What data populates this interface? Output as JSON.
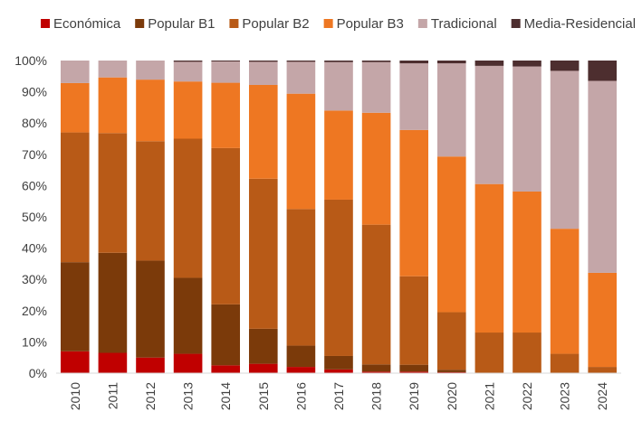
{
  "chart_data": {
    "type": "bar",
    "stacked": "percent",
    "categories": [
      "2010",
      "2011",
      "2012",
      "2013",
      "2014",
      "2015",
      "2016",
      "2017",
      "2018",
      "2019",
      "2020",
      "2021",
      "2022",
      "2023",
      "2024"
    ],
    "series": [
      {
        "name": "Económica",
        "color": "#C00000",
        "values": [
          7.0,
          6.5,
          5.0,
          6.2,
          2.5,
          3.0,
          2.0,
          1.2,
          0.5,
          0.5,
          0.3,
          0,
          0,
          0,
          0
        ]
      },
      {
        "name": "Popular B1",
        "color": "#7B3A0A",
        "values": [
          28.5,
          32.0,
          31.0,
          24.3,
          19.5,
          11.2,
          6.8,
          4.3,
          2.3,
          2.2,
          0.8,
          0,
          0,
          0,
          0
        ]
      },
      {
        "name": "Popular B2",
        "color": "#B85A17",
        "values": [
          41.5,
          38.3,
          38.2,
          44.5,
          50.0,
          48.0,
          43.7,
          50.0,
          44.7,
          28.3,
          18.4,
          13.0,
          13.0,
          6.2,
          2.0
        ]
      },
      {
        "name": "Popular B3",
        "color": "#EE7722",
        "values": [
          15.8,
          17.8,
          19.7,
          18.3,
          20.9,
          30.0,
          36.9,
          28.5,
          35.8,
          46.8,
          49.8,
          47.5,
          45.1,
          40.0,
          30.1
        ]
      },
      {
        "name": "Tradicional",
        "color": "#C4A6A8",
        "values": [
          7.2,
          5.4,
          6.1,
          6.3,
          6.8,
          7.4,
          10.2,
          15.5,
          16.2,
          21.3,
          29.8,
          37.8,
          40.0,
          50.5,
          61.4
        ]
      },
      {
        "name": "Media-Residencial",
        "color": "#4D2E2F",
        "values": [
          0,
          0,
          0,
          0.4,
          0.3,
          0.4,
          0.4,
          0.5,
          0.5,
          0.9,
          0.9,
          1.7,
          1.9,
          3.3,
          6.5
        ]
      }
    ],
    "y_ticks": [
      "0%",
      "10%",
      "20%",
      "30%",
      "40%",
      "50%",
      "60%",
      "70%",
      "80%",
      "90%",
      "100%"
    ],
    "ylim": [
      0,
      100
    ],
    "grid": false,
    "legend_position": "top",
    "xlabel": "",
    "ylabel": ""
  }
}
